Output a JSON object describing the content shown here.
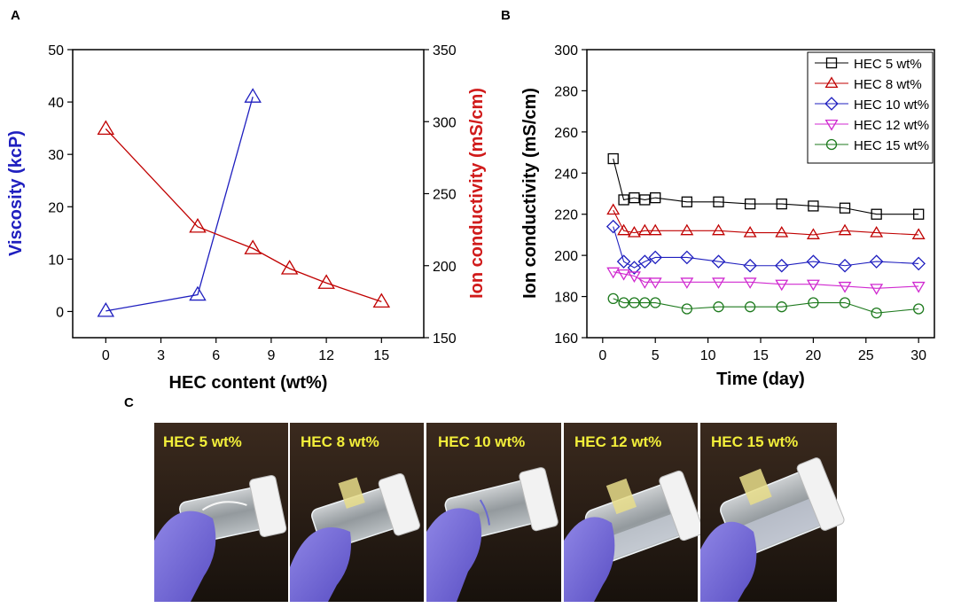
{
  "panels": {
    "a": "A",
    "b": "B",
    "c": "C"
  },
  "chart_data": [
    {
      "type": "line",
      "panel": "A",
      "xlabel": "HEC content (wt%)",
      "xlim": [
        -1.8,
        17.3
      ],
      "xticks": [
        0,
        3,
        6,
        9,
        12,
        15
      ],
      "y_left": {
        "label": "Viscosity (kcP)",
        "lim": [
          -5,
          50
        ],
        "ticks": [
          0,
          10,
          20,
          30,
          40,
          50
        ],
        "color": "#1f1fbf"
      },
      "y_right": {
        "label": "Ion conductivity (mS/cm)",
        "lim": [
          150,
          350
        ],
        "ticks": [
          150,
          200,
          250,
          300,
          350
        ],
        "color": "#d01a1a"
      },
      "series": [
        {
          "name": "Viscosity",
          "axis": "left",
          "marker": "triangle-up",
          "color": "#1f1fbf",
          "x": [
            0,
            5,
            8
          ],
          "values": [
            0.1,
            3.2,
            41
          ]
        },
        {
          "name": "Ion conductivity",
          "axis": "right",
          "marker": "triangle-up",
          "color": "#c00000",
          "x": [
            0,
            5,
            8,
            10,
            12,
            15
          ],
          "values": [
            295,
            227,
            212,
            198,
            188,
            175
          ]
        }
      ]
    },
    {
      "type": "line",
      "panel": "B",
      "xlabel": "Time (day)",
      "ylabel": "Ion conductivity (mS/cm)",
      "xlim": [
        -1.5,
        31.5
      ],
      "ylim": [
        160,
        300
      ],
      "xticks": [
        0,
        5,
        10,
        15,
        20,
        25,
        30
      ],
      "yticks": [
        160,
        180,
        200,
        220,
        240,
        260,
        280,
        300
      ],
      "legend_position": "top-right",
      "x": [
        1,
        2,
        3,
        4,
        5,
        8,
        11,
        14,
        17,
        20,
        23,
        26,
        30
      ],
      "series": [
        {
          "name": "HEC 5 wt%",
          "marker": "square",
          "color": "#000000",
          "values": [
            247,
            227,
            228,
            227,
            228,
            226,
            226,
            225,
            225,
            224,
            223,
            220,
            220
          ]
        },
        {
          "name": "HEC 8 wt%",
          "marker": "triangle-up",
          "color": "#c00000",
          "values": [
            222,
            212,
            211,
            212,
            212,
            212,
            212,
            211,
            211,
            210,
            212,
            211,
            210
          ]
        },
        {
          "name": "HEC 10 wt%",
          "marker": "diamond",
          "color": "#1f1fbf",
          "values": [
            214,
            197,
            194,
            197,
            199,
            199,
            197,
            195,
            195,
            197,
            195,
            197,
            196
          ]
        },
        {
          "name": "HEC 12 wt%",
          "marker": "triangle-down",
          "color": "#d02ad0",
          "values": [
            192,
            191,
            190,
            187,
            187,
            187,
            187,
            187,
            186,
            186,
            185,
            184,
            185
          ]
        },
        {
          "name": "HEC 15 wt%",
          "marker": "circle",
          "color": "#1e7a1e",
          "values": [
            179,
            177,
            177,
            177,
            177,
            174,
            175,
            175,
            175,
            177,
            177,
            172,
            174
          ]
        }
      ]
    }
  ],
  "photos": {
    "labels": [
      "HEC 5 wt%",
      "HEC 8 wt%",
      "HEC 10 wt%",
      "HEC 12 wt%",
      "HEC 15 wt%"
    ]
  }
}
